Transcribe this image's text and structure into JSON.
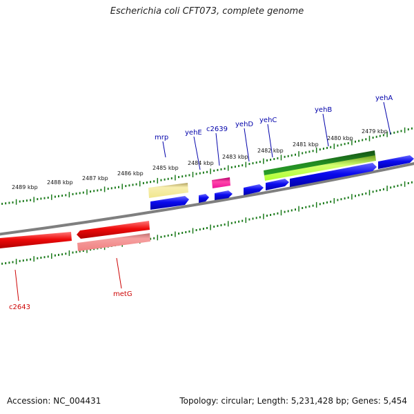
{
  "title": "Escherichia coli CFT073, complete genome",
  "footer": {
    "accession": "Accession: NC_004431",
    "summary": "Topology: circular; Length: 5,231,428 bp; Genes: 5,454"
  },
  "colors": {
    "backbone": "#7f7f7f",
    "tick": "#1a7a1a",
    "label_upper": "#0000aa",
    "label_lower": "#cc0000",
    "blue_gene": "#0a0aee",
    "red_gene": "#ee0a0a",
    "pink_gene": "#f08080",
    "khaki_gene": "#f0e68c",
    "magenta_gene": "#ee1199",
    "green_gene": "#228b22",
    "lime_gene": "#adff2f"
  },
  "kbp_labels": [
    "2489 kbp",
    "2488 kbp",
    "2487 kbp",
    "2486 kbp",
    "2485 kbp",
    "2484 kbp",
    "2483 kbp",
    "2482 kbp",
    "2481 kbp",
    "2480 kbp",
    "2479 kbp"
  ],
  "gene_labels_upper": [
    "mrp",
    "yehE",
    "c2639",
    "yehD",
    "yehC",
    "yehB",
    "yehA"
  ],
  "gene_labels_lower": [
    "c2643",
    "metG"
  ]
}
